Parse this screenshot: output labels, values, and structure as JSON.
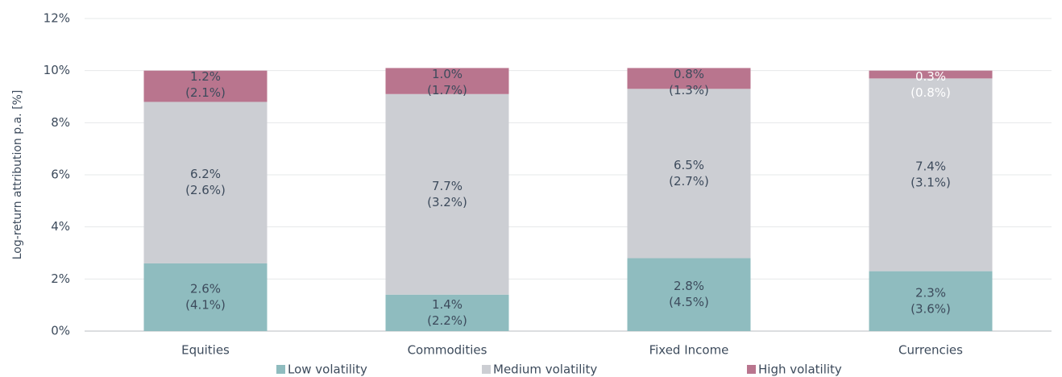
{
  "chart_data": {
    "type": "stacked_bar",
    "y_label": "Log-return attribution p.a. [%]",
    "categories": [
      "Equities",
      "Commodities",
      "Fixed Income",
      "Currencies"
    ],
    "series": [
      {
        "name": "Low volatility",
        "color": "#8fbcbf",
        "values": [
          2.6,
          1.4,
          2.8,
          2.3
        ],
        "value_labels": [
          "2.6%",
          "1.4%",
          "2.8%",
          "2.3%"
        ],
        "secondary_labels": [
          "(4.1%)",
          "(2.2%)",
          "(4.5%)",
          "(3.6%)"
        ]
      },
      {
        "name": "Medium volatility",
        "color": "#ccced3",
        "values": [
          6.2,
          7.7,
          6.5,
          7.4
        ],
        "value_labels": [
          "6.2%",
          "7.7%",
          "6.5%",
          "7.4%"
        ],
        "secondary_labels": [
          "(2.6%)",
          "(3.2%)",
          "(2.7%)",
          "(3.1%)"
        ]
      },
      {
        "name": "High volatility",
        "color": "#b9758e",
        "values": [
          1.2,
          1.0,
          0.8,
          0.3
        ],
        "value_labels": [
          "1.2%",
          "1.0%",
          "0.8%",
          "0.3%"
        ],
        "secondary_labels": [
          "(2.1%)",
          "(1.7%)",
          "(1.3%)",
          "(0.8%)"
        ]
      }
    ],
    "ylim": [
      0,
      12
    ],
    "yticks": [
      {
        "value": 0,
        "label": "0%"
      },
      {
        "value": 2,
        "label": "2%"
      },
      {
        "value": 4,
        "label": "4%"
      },
      {
        "value": 6,
        "label": "6%"
      },
      {
        "value": 8,
        "label": "8%"
      },
      {
        "value": 10,
        "label": "10%"
      },
      {
        "value": 12,
        "label": "12%"
      }
    ],
    "grid": true,
    "legend": "bottom"
  }
}
